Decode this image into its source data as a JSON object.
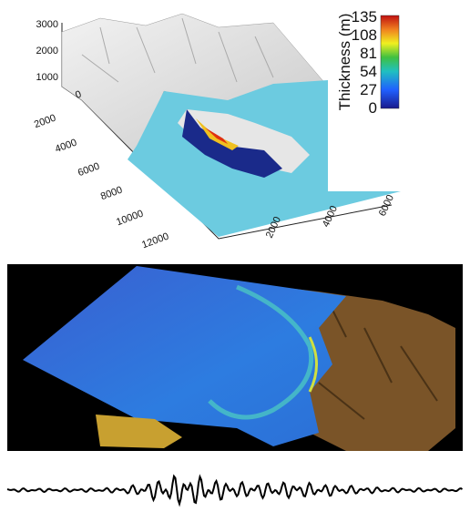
{
  "top_panel": {
    "z_ticks": [
      "3000",
      "2000",
      "1000"
    ],
    "y_ticks": [
      "0",
      "2000",
      "4000",
      "6000",
      "8000",
      "10000",
      "12000"
    ],
    "x_ticks": [
      "2000",
      "4000",
      "6000"
    ],
    "colorbar": {
      "title": "Thickness (m)",
      "ticks": [
        "135",
        "108",
        "81",
        "54",
        "27",
        "0"
      ]
    }
  }
}
